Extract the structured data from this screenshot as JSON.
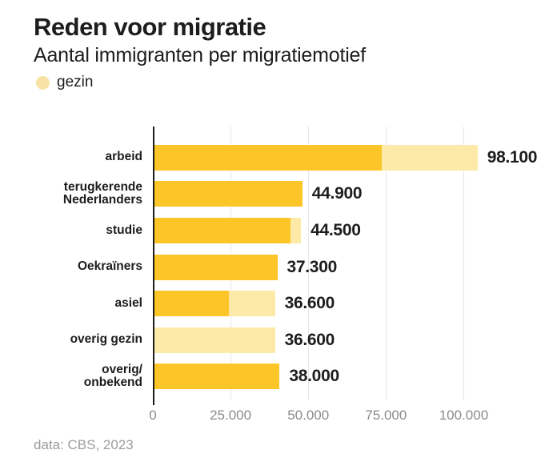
{
  "header": {
    "title": "Reden voor migratie",
    "subtitle": "Aantal immigranten per migratiemotief"
  },
  "legend": {
    "label": "gezin",
    "color": "#f8e3a4"
  },
  "colors": {
    "bar_main": "#fdc628",
    "bar_gezin": "#fdeaa8",
    "axis": "#1d1d1b",
    "gridline": "#e7e7e7",
    "text_dark": "#1d1d1b",
    "text_gray": "#8b8b8b",
    "footer_gray": "#9c9c9c"
  },
  "chart_data": {
    "type": "bar",
    "orientation": "horizontal",
    "title": "Reden voor migratie",
    "subtitle": "Aantal immigranten per migratiemotief",
    "xlim": [
      0,
      121000
    ],
    "grid": "vertical-only",
    "legend_position": "top-left",
    "categories": [
      "arbeid",
      "terugkerende Nederlanders",
      "studie",
      "Oekraïners",
      "asiel",
      "overig gezin",
      "overig/onbekend"
    ],
    "category_label_lines": [
      [
        "arbeid"
      ],
      [
        "terugkerende",
        "Nederlanders"
      ],
      [
        "studie"
      ],
      [
        "Oekraïners"
      ],
      [
        "asiel"
      ],
      [
        "overig gezin"
      ],
      [
        "overig/",
        "onbekend"
      ]
    ],
    "series": [
      {
        "name": "motief",
        "color": "#fdc628",
        "values": [
          69000,
          44900,
          41200,
          37300,
          22500,
          0,
          38000
        ]
      },
      {
        "name": "gezin",
        "color": "#fdeaa8",
        "values": [
          29100,
          0,
          3300,
          0,
          14100,
          36600,
          0
        ]
      }
    ],
    "totals": [
      98100,
      44900,
      44500,
      37300,
      36600,
      36600,
      38000
    ],
    "total_labels": [
      "98.100",
      "44.900",
      "44.500",
      "37.300",
      "36.600",
      "36.600",
      "38.000"
    ],
    "x_ticks": {
      "values": [
        0,
        25000,
        50000,
        75000,
        100000
      ],
      "labels": [
        "0",
        "25.000",
        "50.000",
        "75.000",
        "100.000"
      ]
    }
  },
  "footer": {
    "source": "data: CBS, 2023"
  }
}
